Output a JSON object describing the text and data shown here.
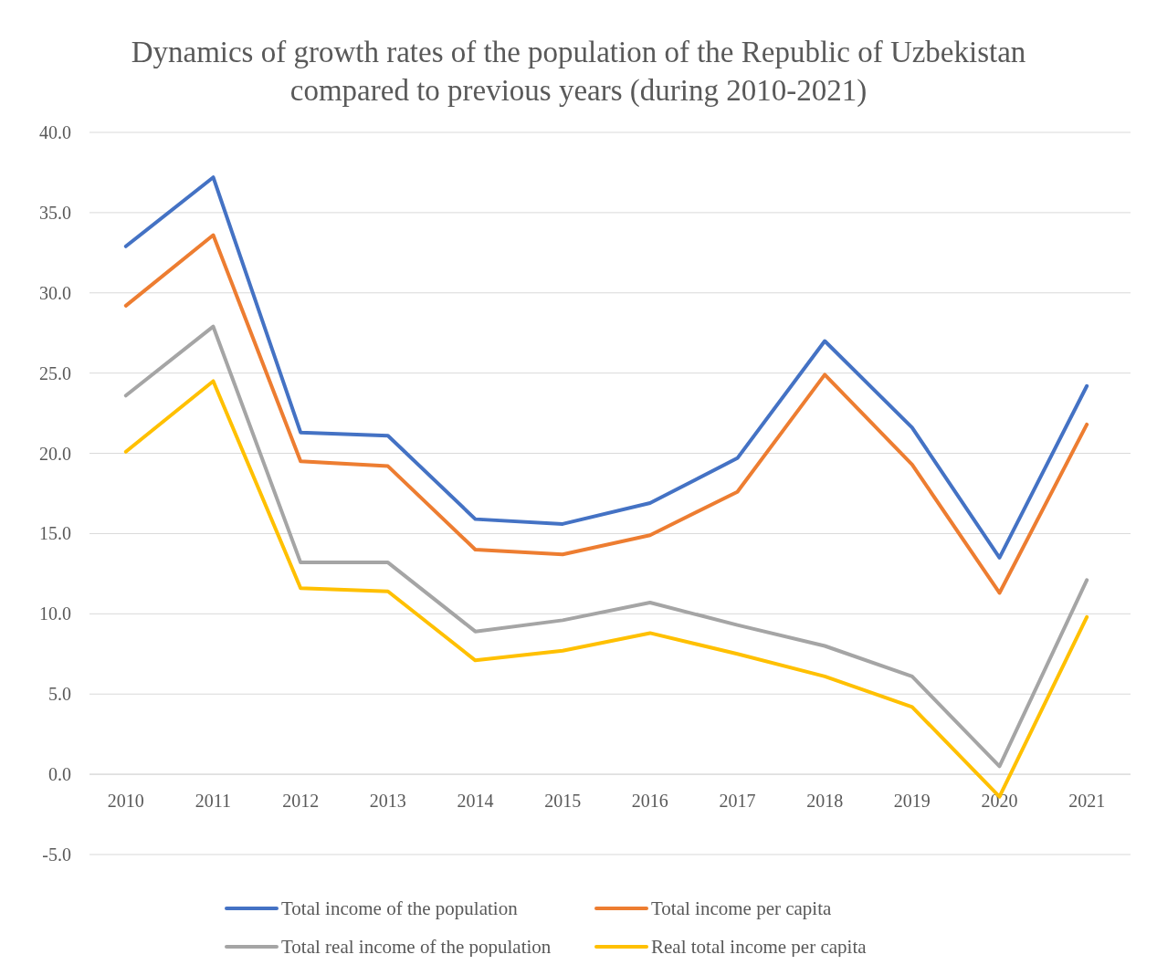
{
  "chart_data": {
    "type": "line",
    "title": "Dynamics of growth rates of the population of the Republic of Uzbekistan compared to previous years (during 2010-2021)",
    "categories": [
      "2010",
      "2011",
      "2012",
      "2013",
      "2014",
      "2015",
      "2016",
      "2017",
      "2018",
      "2019",
      "2020",
      "2021"
    ],
    "series": [
      {
        "name": "Total income of the population",
        "color": "#4472c4",
        "values": [
          32.9,
          37.2,
          21.3,
          21.1,
          15.9,
          15.6,
          16.9,
          19.7,
          27.0,
          21.6,
          13.5,
          24.2
        ]
      },
      {
        "name": "Total income per capita",
        "color": "#ed7d31",
        "values": [
          29.2,
          33.6,
          19.5,
          19.2,
          14.0,
          13.7,
          14.9,
          17.6,
          24.9,
          19.3,
          11.3,
          21.8
        ]
      },
      {
        "name": "Total real income of the population",
        "color": "#a5a5a5",
        "values": [
          23.6,
          27.9,
          13.2,
          13.2,
          8.9,
          9.6,
          10.7,
          9.3,
          8.0,
          6.1,
          0.5,
          12.1
        ]
      },
      {
        "name": "Real total income per capita",
        "color": "#ffc000",
        "values": [
          20.1,
          24.5,
          11.6,
          11.4,
          7.1,
          7.7,
          8.8,
          7.5,
          6.1,
          4.2,
          -1.4,
          9.8
        ]
      }
    ],
    "ylim": [
      -5,
      40
    ],
    "yticks": [
      {
        "value": -5,
        "label": "-5.0"
      },
      {
        "value": 0,
        "label": "0.0"
      },
      {
        "value": 5,
        "label": "5.0"
      },
      {
        "value": 10,
        "label": "10.0"
      },
      {
        "value": 15,
        "label": "15.0"
      },
      {
        "value": 20,
        "label": "20.0"
      },
      {
        "value": 25,
        "label": "25.0"
      },
      {
        "value": 30,
        "label": "30.0"
      },
      {
        "value": 35,
        "label": "35.0"
      },
      {
        "value": 40,
        "label": "40.0"
      }
    ],
    "grid": "y",
    "legend": "bottom",
    "marker": "none",
    "line_style": "solid"
  }
}
